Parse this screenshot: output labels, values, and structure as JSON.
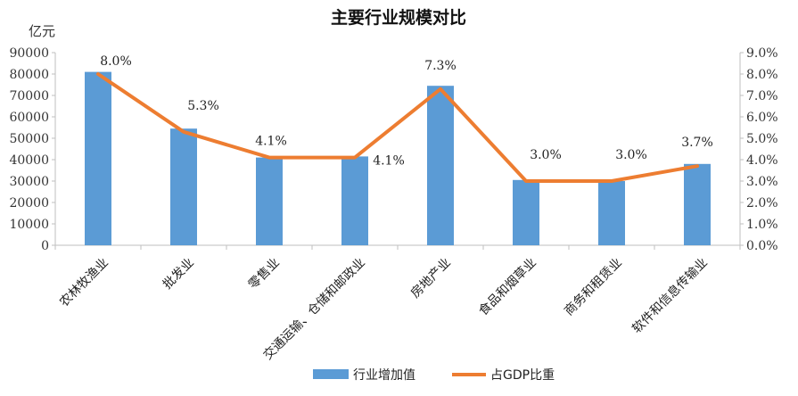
{
  "chart_data": {
    "type": "bar",
    "title": "主要行业规模对比",
    "ylabel": "亿元",
    "categories": [
      "农林牧渔业",
      "批发业",
      "零售业",
      "交通运输、仓储和邮政业",
      "房地产业",
      "食品和烟草业",
      "商务和租赁业",
      "软件和信息传输业"
    ],
    "series": [
      {
        "name": "行业增加值",
        "type": "bar",
        "axis": "left",
        "color": "#5B9BD5",
        "values": [
          81000,
          54500,
          41000,
          41500,
          74500,
          30500,
          30000,
          38000
        ]
      },
      {
        "name": "占GDP比重",
        "type": "line",
        "axis": "right",
        "color": "#ED7D31",
        "values": [
          8.0,
          5.3,
          4.1,
          4.1,
          7.3,
          3.0,
          3.0,
          3.7
        ],
        "labels": [
          "8.0%",
          "5.3%",
          "4.1%",
          "4.1%",
          "7.3%",
          "3.0%",
          "3.0%",
          "3.7%"
        ]
      }
    ],
    "ylim": [
      0,
      90000
    ],
    "yticks": [
      "0",
      "10000",
      "20000",
      "30000",
      "40000",
      "50000",
      "60000",
      "70000",
      "80000",
      "90000"
    ],
    "y2lim": [
      0,
      9.0
    ],
    "y2ticks": [
      "0.0%",
      "1.0%",
      "2.0%",
      "3.0%",
      "4.0%",
      "5.0%",
      "6.0%",
      "7.0%",
      "8.0%",
      "9.0%"
    ],
    "grid": false,
    "legend_position": "bottom"
  }
}
